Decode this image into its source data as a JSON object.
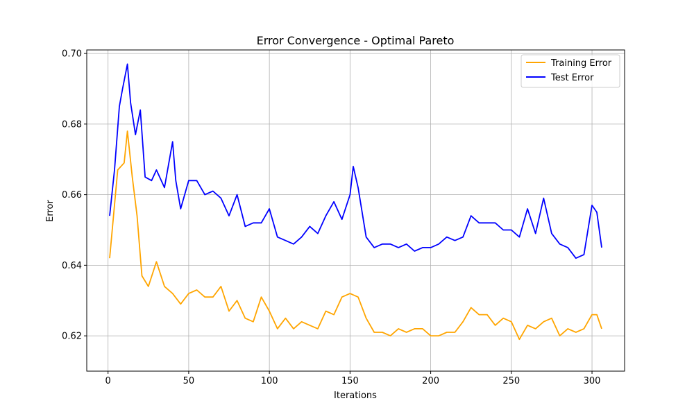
{
  "chart_data": {
    "type": "line",
    "title": "Error Convergence - Optimal Pareto",
    "xlabel": "Iterations",
    "ylabel": "Error",
    "xlim": [
      -13.2,
      320.2
    ],
    "ylim": [
      0.61,
      0.701
    ],
    "xticks": [
      0,
      50,
      100,
      150,
      200,
      250,
      300
    ],
    "yticks": [
      0.62,
      0.64,
      0.66,
      0.68,
      0.7
    ],
    "ytick_labels": [
      "0.62",
      "0.64",
      "0.66",
      "0.68",
      "0.70"
    ],
    "grid": true,
    "legend_position": "top-right",
    "series": [
      {
        "name": "Training Error",
        "color": "#FFA500",
        "x": [
          1,
          6,
          10,
          12,
          15,
          18,
          21,
          25,
          30,
          35,
          40,
          45,
          50,
          55,
          60,
          65,
          70,
          75,
          80,
          85,
          90,
          95,
          100,
          105,
          110,
          115,
          120,
          125,
          130,
          135,
          140,
          145,
          150,
          155,
          160,
          165,
          170,
          175,
          180,
          185,
          190,
          195,
          200,
          205,
          210,
          215,
          220,
          225,
          230,
          235,
          240,
          245,
          250,
          255,
          260,
          265,
          270,
          275,
          280,
          285,
          290,
          295,
          300,
          303,
          306
        ],
        "y": [
          0.642,
          0.667,
          0.669,
          0.678,
          0.665,
          0.654,
          0.637,
          0.634,
          0.641,
          0.634,
          0.632,
          0.629,
          0.632,
          0.633,
          0.631,
          0.631,
          0.634,
          0.627,
          0.63,
          0.625,
          0.624,
          0.631,
          0.627,
          0.622,
          0.625,
          0.622,
          0.624,
          0.623,
          0.622,
          0.627,
          0.626,
          0.631,
          0.632,
          0.631,
          0.625,
          0.621,
          0.621,
          0.62,
          0.622,
          0.621,
          0.622,
          0.622,
          0.62,
          0.62,
          0.621,
          0.621,
          0.624,
          0.628,
          0.626,
          0.626,
          0.623,
          0.625,
          0.624,
          0.619,
          0.623,
          0.622,
          0.624,
          0.625,
          0.62,
          0.622,
          0.621,
          0.622,
          0.626,
          0.626,
          0.622
        ]
      },
      {
        "name": "Test Error",
        "color": "#0000FF",
        "x": [
          1,
          4,
          7,
          9,
          12,
          14,
          17,
          20,
          23,
          27,
          30,
          35,
          40,
          42,
          45,
          50,
          55,
          60,
          65,
          70,
          75,
          80,
          85,
          90,
          95,
          100,
          105,
          110,
          115,
          120,
          125,
          130,
          135,
          140,
          145,
          150,
          152,
          155,
          160,
          165,
          170,
          175,
          180,
          185,
          190,
          195,
          200,
          205,
          210,
          215,
          220,
          225,
          230,
          235,
          240,
          245,
          250,
          255,
          260,
          265,
          270,
          275,
          280,
          285,
          290,
          295,
          300,
          303,
          306
        ],
        "y": [
          0.654,
          0.667,
          0.685,
          0.69,
          0.697,
          0.686,
          0.677,
          0.684,
          0.665,
          0.664,
          0.667,
          0.662,
          0.675,
          0.664,
          0.656,
          0.664,
          0.664,
          0.66,
          0.661,
          0.659,
          0.654,
          0.66,
          0.651,
          0.652,
          0.652,
          0.656,
          0.648,
          0.647,
          0.646,
          0.648,
          0.651,
          0.649,
          0.654,
          0.658,
          0.653,
          0.66,
          0.668,
          0.662,
          0.648,
          0.645,
          0.646,
          0.646,
          0.645,
          0.646,
          0.644,
          0.645,
          0.645,
          0.646,
          0.648,
          0.647,
          0.648,
          0.654,
          0.652,
          0.652,
          0.652,
          0.65,
          0.65,
          0.648,
          0.656,
          0.649,
          0.659,
          0.649,
          0.646,
          0.645,
          0.642,
          0.643,
          0.657,
          0.655,
          0.645
        ]
      }
    ]
  }
}
